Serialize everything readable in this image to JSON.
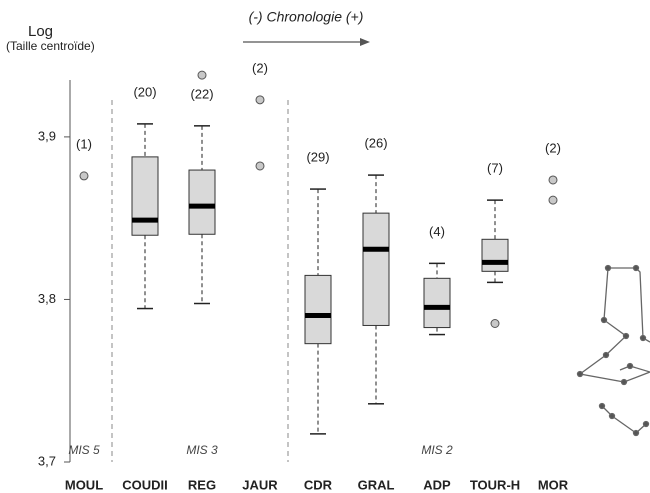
{
  "chart_data": {
    "type": "box",
    "title": "Log",
    "subtitle": "(Taille centroïde)",
    "annotation": "(-) Chronologie (+)",
    "periods": [
      "MIS 5",
      "MIS 3",
      "MIS 2"
    ],
    "categories": [
      "MOUL",
      "COUDII",
      "REG",
      "JAUR",
      "CDR",
      "GRAL",
      "ADP",
      "TOUR-H",
      "MOR"
    ],
    "counts": [
      "(1)",
      "(20)",
      "(22)",
      "(2)",
      "(29)",
      "(26)",
      "(4)",
      "(7)",
      "(2)"
    ],
    "whisker_low": [
      null,
      3.7944,
      3.7975,
      null,
      3.7173,
      3.7358,
      3.7784,
      3.8105,
      null
    ],
    "q1": [
      null,
      3.8395,
      3.8401,
      null,
      3.7728,
      3.784,
      3.7827,
      3.8173,
      null
    ],
    "median": [
      null,
      3.8488,
      3.8574,
      null,
      3.7901,
      3.8309,
      3.7951,
      3.8228,
      null
    ],
    "q3": [
      null,
      3.8877,
      3.8796,
      null,
      3.8148,
      3.8531,
      3.813,
      3.837,
      null
    ],
    "whisker_high": [
      null,
      3.908,
      3.9068,
      null,
      3.8679,
      3.8765,
      3.8222,
      3.8611,
      null
    ],
    "points": [
      [
        3.876
      ],
      [],
      [
        3.938
      ],
      [
        3.9228,
        3.8821
      ],
      [],
      [],
      [],
      [
        3.7852
      ],
      [
        3.8735,
        3.8611
      ]
    ],
    "box_color": "#d9d9d9",
    "point_color": "#c8c8c8",
    "ylim": [
      3.7,
      3.935
    ],
    "yticks": [
      {
        "value": 3.7,
        "label": "3,7"
      },
      {
        "value": 3.8,
        "label": "3,8"
      },
      {
        "value": 3.9,
        "label": "3,9"
      }
    ]
  }
}
